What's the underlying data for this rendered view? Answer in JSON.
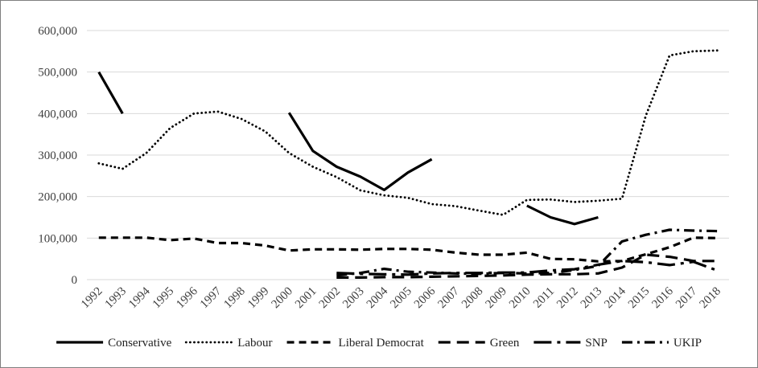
{
  "chart_data": {
    "type": "line",
    "title": "",
    "xlabel": "",
    "ylabel": "",
    "x": [
      1992,
      1993,
      1994,
      1995,
      1996,
      1997,
      1998,
      1999,
      2000,
      2001,
      2002,
      2003,
      2004,
      2005,
      2006,
      2007,
      2008,
      2009,
      2010,
      2011,
      2012,
      2013,
      2014,
      2015,
      2016,
      2017,
      2018
    ],
    "x_tick_labels": [
      "1992",
      "1993",
      "1994",
      "1995",
      "1996",
      "1997",
      "1998",
      "1999",
      "2000",
      "2001",
      "2002",
      "2003",
      "2004",
      "2005",
      "2006",
      "2007",
      "2008",
      "2009",
      "2010",
      "2011",
      "2012",
      "2013",
      "2014",
      "2015",
      "2016",
      "2017",
      "2018"
    ],
    "ylim": [
      0,
      600000
    ],
    "y_ticks": [
      0,
      100000,
      200000,
      300000,
      400000,
      500000,
      600000
    ],
    "y_tick_labels": [
      "0",
      "100,000",
      "200,000",
      "300,000",
      "400,000",
      "500,000",
      "600,000"
    ],
    "grid": "horizontal",
    "legend_position": "bottom",
    "series": [
      {
        "name": "Conservative",
        "line_style": "solid",
        "color": "#000000",
        "values": [
          500000,
          400000,
          null,
          null,
          null,
          null,
          null,
          null,
          402000,
          310000,
          272000,
          248000,
          216000,
          258000,
          290000,
          null,
          null,
          null,
          178000,
          150000,
          134000,
          150000,
          null,
          null,
          null,
          null,
          null
        ]
      },
      {
        "name": "Labour",
        "line_style": "dotted",
        "color": "#000000",
        "values": [
          280000,
          267000,
          305000,
          365000,
          400000,
          405000,
          387000,
          357000,
          305000,
          272000,
          247000,
          215000,
          203000,
          197000,
          182000,
          177000,
          166000,
          156000,
          192000,
          193000,
          187000,
          190000,
          195000,
          395000,
          540000,
          550000,
          552000
        ]
      },
      {
        "name": "Liberal Democrat",
        "line_style": "dashed",
        "color": "#000000",
        "values": [
          101000,
          101000,
          101000,
          95000,
          99000,
          88000,
          88000,
          82000,
          70000,
          73000,
          73000,
          72000,
          74000,
          74000,
          72000,
          65000,
          60000,
          60000,
          65000,
          50000,
          49000,
          44000,
          45000,
          61000,
          78000,
          101000,
          100000
        ]
      },
      {
        "name": "Green",
        "line_style": "long-dash",
        "color": "#000000",
        "values": [
          null,
          null,
          null,
          null,
          null,
          null,
          null,
          null,
          null,
          null,
          5000,
          5000,
          6000,
          6000,
          7000,
          8000,
          9000,
          10000,
          12000,
          13000,
          13000,
          15000,
          29000,
          60000,
          55000,
          45000,
          45000
        ]
      },
      {
        "name": "SNP",
        "line_style": "long-dash-dot",
        "color": "#000000",
        "values": [
          null,
          null,
          null,
          null,
          null,
          null,
          null,
          null,
          null,
          null,
          16000,
          14000,
          13000,
          12000,
          15000,
          16000,
          16000,
          17000,
          17000,
          22000,
          25000,
          36000,
          45000,
          42000,
          35000,
          43000,
          22000
        ]
      },
      {
        "name": "UKIP",
        "line_style": "dash-dot",
        "color": "#000000",
        "values": [
          null,
          null,
          null,
          null,
          null,
          null,
          null,
          null,
          null,
          null,
          10000,
          16000,
          26000,
          19000,
          17000,
          15000,
          14000,
          16000,
          15000,
          16000,
          23000,
          33000,
          92000,
          108000,
          120000,
          118000,
          117000
        ]
      }
    ]
  }
}
